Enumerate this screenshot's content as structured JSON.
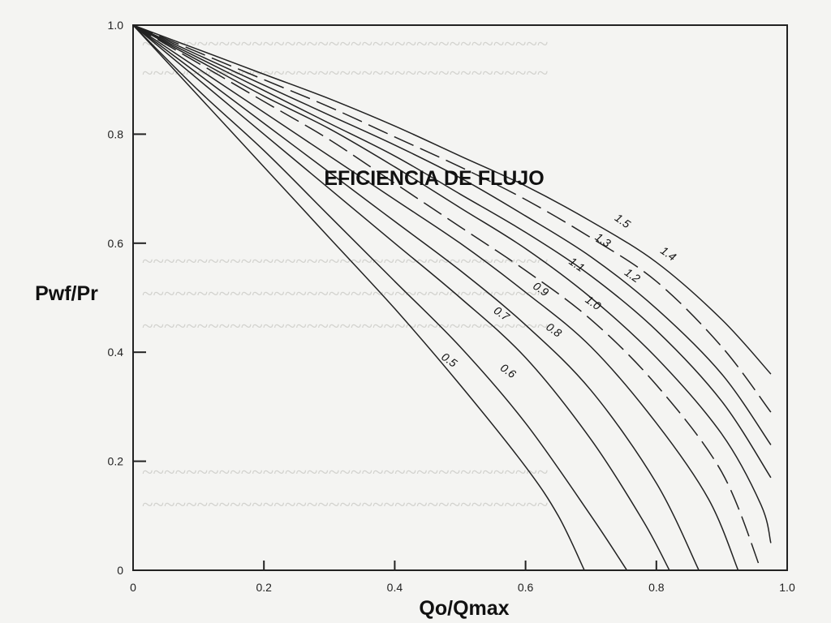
{
  "chart_data": {
    "type": "line",
    "title": "EFICIENCIA DE FLUJO",
    "xlabel": "Qo/Qmax",
    "ylabel": "Pwf/Pr",
    "xlim": [
      0,
      1.0
    ],
    "ylim": [
      0,
      1.0
    ],
    "x_ticks": [
      "0",
      "0.2",
      "0.4",
      "0.6",
      "0.8",
      "1.0"
    ],
    "y_ticks": [
      "0",
      "0.2",
      "0.4",
      "0.6",
      "0.8",
      "1.0"
    ],
    "grid": false,
    "series": [
      {
        "name": "0.5",
        "style": "solid",
        "label_pos": {
          "x": 0.48,
          "y": 0.38
        },
        "points": [
          [
            0,
            1
          ],
          [
            0.1,
            0.87
          ],
          [
            0.2,
            0.74
          ],
          [
            0.3,
            0.61
          ],
          [
            0.4,
            0.48
          ],
          [
            0.5,
            0.34
          ],
          [
            0.6,
            0.19
          ],
          [
            0.65,
            0.1
          ],
          [
            0.69,
            0
          ]
        ]
      },
      {
        "name": "0.6",
        "style": "solid",
        "label_pos": {
          "x": 0.57,
          "y": 0.36
        },
        "points": [
          [
            0,
            1
          ],
          [
            0.1,
            0.88
          ],
          [
            0.2,
            0.77
          ],
          [
            0.3,
            0.65
          ],
          [
            0.4,
            0.53
          ],
          [
            0.5,
            0.41
          ],
          [
            0.6,
            0.27
          ],
          [
            0.7,
            0.1
          ],
          [
            0.755,
            0
          ]
        ]
      },
      {
        "name": "0.7",
        "style": "solid",
        "label_pos": {
          "x": 0.56,
          "y": 0.465
        },
        "points": [
          [
            0,
            1
          ],
          [
            0.1,
            0.9
          ],
          [
            0.2,
            0.8
          ],
          [
            0.3,
            0.7
          ],
          [
            0.4,
            0.6
          ],
          [
            0.5,
            0.5
          ],
          [
            0.6,
            0.39
          ],
          [
            0.7,
            0.24
          ],
          [
            0.78,
            0.09
          ],
          [
            0.82,
            0
          ]
        ]
      },
      {
        "name": "0.8",
        "style": "solid",
        "label_pos": {
          "x": 0.64,
          "y": 0.435
        },
        "points": [
          [
            0,
            1
          ],
          [
            0.1,
            0.91
          ],
          [
            0.2,
            0.82
          ],
          [
            0.3,
            0.73
          ],
          [
            0.4,
            0.64
          ],
          [
            0.5,
            0.55
          ],
          [
            0.6,
            0.45
          ],
          [
            0.7,
            0.33
          ],
          [
            0.8,
            0.16
          ],
          [
            0.865,
            0
          ]
        ]
      },
      {
        "name": "0.9",
        "style": "solid",
        "label_pos": {
          "x": 0.62,
          "y": 0.51
        },
        "points": [
          [
            0,
            1
          ],
          [
            0.1,
            0.92
          ],
          [
            0.2,
            0.84
          ],
          [
            0.3,
            0.76
          ],
          [
            0.4,
            0.68
          ],
          [
            0.5,
            0.6
          ],
          [
            0.6,
            0.51
          ],
          [
            0.7,
            0.41
          ],
          [
            0.8,
            0.27
          ],
          [
            0.88,
            0.13
          ],
          [
            0.925,
            0
          ]
        ]
      },
      {
        "name": "1.0",
        "style": "dashed",
        "label_pos": {
          "x": 0.7,
          "y": 0.485
        },
        "points": [
          [
            0,
            1
          ],
          [
            0.1,
            0.93
          ],
          [
            0.2,
            0.86
          ],
          [
            0.3,
            0.79
          ],
          [
            0.4,
            0.71
          ],
          [
            0.5,
            0.63
          ],
          [
            0.6,
            0.55
          ],
          [
            0.7,
            0.46
          ],
          [
            0.8,
            0.34
          ],
          [
            0.9,
            0.18
          ],
          [
            0.96,
            0
          ]
        ]
      },
      {
        "name": "1.1",
        "style": "solid",
        "label_pos": {
          "x": 0.675,
          "y": 0.555
        },
        "points": [
          [
            0,
            1
          ],
          [
            0.1,
            0.935
          ],
          [
            0.2,
            0.87
          ],
          [
            0.3,
            0.81
          ],
          [
            0.4,
            0.74
          ],
          [
            0.5,
            0.665
          ],
          [
            0.6,
            0.59
          ],
          [
            0.7,
            0.5
          ],
          [
            0.8,
            0.39
          ],
          [
            0.9,
            0.25
          ],
          [
            0.96,
            0.12
          ],
          [
            0.975,
            0.05
          ]
        ]
      },
      {
        "name": "1.2",
        "style": "solid",
        "label_pos": {
          "x": 0.76,
          "y": 0.535
        },
        "points": [
          [
            0,
            1
          ],
          [
            0.1,
            0.94
          ],
          [
            0.2,
            0.88
          ],
          [
            0.3,
            0.82
          ],
          [
            0.4,
            0.76
          ],
          [
            0.5,
            0.69
          ],
          [
            0.6,
            0.62
          ],
          [
            0.7,
            0.54
          ],
          [
            0.8,
            0.44
          ],
          [
            0.9,
            0.31
          ],
          [
            0.975,
            0.17
          ]
        ]
      },
      {
        "name": "1.3",
        "style": "solid",
        "label_pos": {
          "x": 0.715,
          "y": 0.6
        },
        "points": [
          [
            0,
            1
          ],
          [
            0.1,
            0.945
          ],
          [
            0.2,
            0.89
          ],
          [
            0.3,
            0.835
          ],
          [
            0.4,
            0.78
          ],
          [
            0.5,
            0.72
          ],
          [
            0.6,
            0.65
          ],
          [
            0.7,
            0.575
          ],
          [
            0.8,
            0.48
          ],
          [
            0.9,
            0.36
          ],
          [
            0.975,
            0.23
          ]
        ]
      },
      {
        "name": "1.4",
        "style": "dashed",
        "label_pos": {
          "x": 0.815,
          "y": 0.575
        },
        "points": [
          [
            0,
            1
          ],
          [
            0.1,
            0.95
          ],
          [
            0.2,
            0.9
          ],
          [
            0.3,
            0.85
          ],
          [
            0.4,
            0.795
          ],
          [
            0.5,
            0.74
          ],
          [
            0.6,
            0.68
          ],
          [
            0.7,
            0.61
          ],
          [
            0.8,
            0.53
          ],
          [
            0.9,
            0.41
          ],
          [
            0.975,
            0.29
          ]
        ]
      },
      {
        "name": "1.5",
        "style": "solid",
        "label_pos": {
          "x": 0.745,
          "y": 0.635
        },
        "points": [
          [
            0,
            1
          ],
          [
            0.1,
            0.955
          ],
          [
            0.2,
            0.91
          ],
          [
            0.3,
            0.865
          ],
          [
            0.4,
            0.815
          ],
          [
            0.5,
            0.76
          ],
          [
            0.6,
            0.705
          ],
          [
            0.7,
            0.64
          ],
          [
            0.8,
            0.565
          ],
          [
            0.9,
            0.46
          ],
          [
            0.975,
            0.36
          ]
        ]
      }
    ]
  }
}
